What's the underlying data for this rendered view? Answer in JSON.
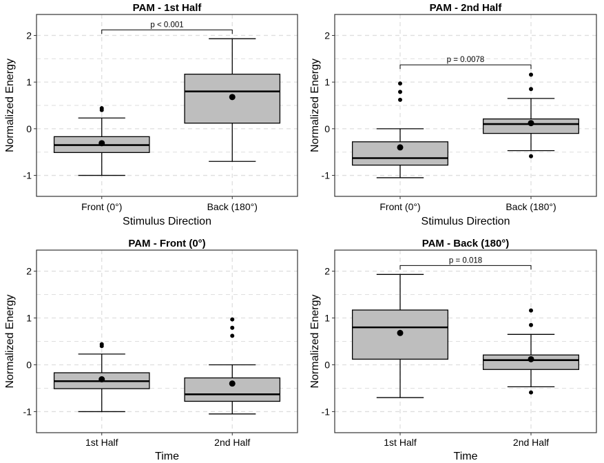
{
  "chart_data": [
    {
      "type": "boxplot",
      "title": "PAM - 1st Half",
      "xlabel": "Stimulus Direction",
      "ylabel": "Normalized Energy",
      "ylim": [
        -1.45,
        2.45
      ],
      "yticks": [
        "-1",
        "0",
        "1",
        "2"
      ],
      "ytick_values": [
        -1,
        0,
        1,
        2
      ],
      "grid": true,
      "categories": [
        "Front (0°)",
        "Back (180°)"
      ],
      "boxes": [
        {
          "min": -1.0,
          "q1": -0.51,
          "median": -0.35,
          "q3": -0.17,
          "max": 0.23,
          "mean": -0.31,
          "outliers": [
            0.4,
            0.44
          ]
        },
        {
          "min": -0.7,
          "q1": 0.12,
          "median": 0.8,
          "q3": 1.17,
          "max": 1.93,
          "mean": 0.68,
          "outliers": []
        }
      ],
      "significance": {
        "label": "p < 0.001",
        "from": 0,
        "to": 1,
        "y": 2.12
      }
    },
    {
      "type": "boxplot",
      "title": "PAM - 2nd Half",
      "xlabel": "Stimulus Direction",
      "ylabel": "Normalized Energy",
      "ylim": [
        -1.45,
        2.45
      ],
      "yticks": [
        "-1",
        "0",
        "1",
        "2"
      ],
      "ytick_values": [
        -1,
        0,
        1,
        2
      ],
      "grid": true,
      "categories": [
        "Front (0°)",
        "Back (180°)"
      ],
      "boxes": [
        {
          "min": -1.05,
          "q1": -0.78,
          "median": -0.63,
          "q3": -0.28,
          "max": 0.0,
          "mean": -0.4,
          "outliers": [
            0.62,
            0.79,
            0.97
          ]
        },
        {
          "min": -0.47,
          "q1": -0.1,
          "median": 0.1,
          "q3": 0.21,
          "max": 0.65,
          "mean": 0.12,
          "outliers": [
            -0.59,
            0.85,
            1.16
          ]
        }
      ],
      "significance": {
        "label": "p = 0.0078",
        "from": 0,
        "to": 1,
        "y": 1.37
      }
    },
    {
      "type": "boxplot",
      "title": "PAM - Front (0°)",
      "xlabel": "Time",
      "ylabel": "Normalized Energy",
      "ylim": [
        -1.45,
        2.45
      ],
      "yticks": [
        "-1",
        "0",
        "1",
        "2"
      ],
      "ytick_values": [
        -1,
        0,
        1,
        2
      ],
      "grid": true,
      "categories": [
        "1st Half",
        "2nd Half"
      ],
      "boxes": [
        {
          "min": -1.0,
          "q1": -0.51,
          "median": -0.35,
          "q3": -0.17,
          "max": 0.23,
          "mean": -0.31,
          "outliers": [
            0.4,
            0.44
          ]
        },
        {
          "min": -1.05,
          "q1": -0.78,
          "median": -0.63,
          "q3": -0.28,
          "max": 0.0,
          "mean": -0.4,
          "outliers": [
            0.62,
            0.79,
            0.97
          ]
        }
      ],
      "significance": null
    },
    {
      "type": "boxplot",
      "title": "PAM - Back (180°)",
      "xlabel": "Time",
      "ylabel": "Normalized Energy",
      "ylim": [
        -1.45,
        2.45
      ],
      "yticks": [
        "-1",
        "0",
        "1",
        "2"
      ],
      "ytick_values": [
        -1,
        0,
        1,
        2
      ],
      "grid": true,
      "categories": [
        "1st Half",
        "2nd Half"
      ],
      "boxes": [
        {
          "min": -0.7,
          "q1": 0.12,
          "median": 0.8,
          "q3": 1.17,
          "max": 1.93,
          "mean": 0.68,
          "outliers": []
        },
        {
          "min": -0.47,
          "q1": -0.1,
          "median": 0.1,
          "q3": 0.21,
          "max": 0.65,
          "mean": 0.12,
          "outliers": [
            -0.59,
            0.85,
            1.16
          ]
        }
      ],
      "significance": {
        "label": "p = 0.018",
        "from": 0,
        "to": 1,
        "y": 2.12
      }
    }
  ],
  "colors": {
    "box_fill": "#bebebe",
    "line": "#000000",
    "grid": "#dedede",
    "panel_border": "#333333"
  }
}
